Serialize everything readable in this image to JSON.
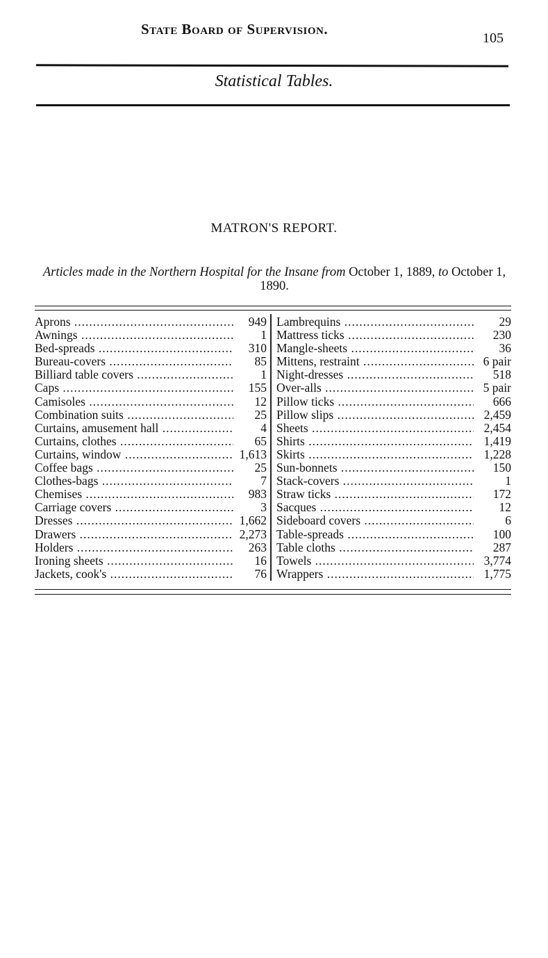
{
  "header": {
    "running_title": "State Board of Supervision.",
    "page_number": "105"
  },
  "section_title": "Statistical Tables.",
  "report": {
    "title": "MATRON'S REPORT.",
    "subtitle_parts": [
      "Articles made in the Northern Hospital for the Insane from",
      " October 1, 1889, ",
      "to",
      " October 1, 1890."
    ]
  },
  "table": {
    "left": [
      {
        "item": "Aprons",
        "qty": "949"
      },
      {
        "item": "Awnings",
        "qty": "1"
      },
      {
        "item": "Bed-spreads",
        "qty": "310"
      },
      {
        "item": "Bureau-covers",
        "qty": "85"
      },
      {
        "item": "Billiard table covers",
        "qty": "1"
      },
      {
        "item": "Caps",
        "qty": "155"
      },
      {
        "item": "Camisoles",
        "qty": "12"
      },
      {
        "item": "Combination suits",
        "qty": "25"
      },
      {
        "item": "Curtains, amusement hall",
        "qty": "4"
      },
      {
        "item": "Curtains, clothes",
        "qty": "65"
      },
      {
        "item": "Curtains, window",
        "qty": "1,613"
      },
      {
        "item": "Coffee bags",
        "qty": "25"
      },
      {
        "item": "Clothes-bags",
        "qty": "7"
      },
      {
        "item": "Chemises",
        "qty": "983"
      },
      {
        "item": "Carriage covers",
        "qty": "3"
      },
      {
        "item": "Dresses",
        "qty": "1,662"
      },
      {
        "item": "Drawers",
        "qty": "2,273"
      },
      {
        "item": "Holders",
        "qty": "263"
      },
      {
        "item": "Ironing sheets",
        "qty": "16"
      },
      {
        "item": "Jackets, cook's",
        "qty": "76"
      }
    ],
    "right": [
      {
        "item": "Lambrequins",
        "qty": "29"
      },
      {
        "item": "Mattress ticks",
        "qty": "230"
      },
      {
        "item": "Mangle-sheets",
        "qty": "36"
      },
      {
        "item": "Mittens, restraint",
        "qty": "6 pair"
      },
      {
        "item": "Night-dresses",
        "qty": "518"
      },
      {
        "item": "Over-alls",
        "qty": "5 pair"
      },
      {
        "item": "Pillow ticks",
        "qty": "666"
      },
      {
        "item": "Pillow slips",
        "qty": "2,459"
      },
      {
        "item": "Sheets",
        "qty": "2,454"
      },
      {
        "item": "Shirts",
        "qty": "1,419"
      },
      {
        "item": "Skirts",
        "qty": "1,228"
      },
      {
        "item": "Sun-bonnets",
        "qty": "150"
      },
      {
        "item": "Stack-covers",
        "qty": "1"
      },
      {
        "item": "Straw ticks",
        "qty": "172"
      },
      {
        "item": "Sacques",
        "qty": "12"
      },
      {
        "item": "Sideboard covers",
        "qty": "6"
      },
      {
        "item": "Table-spreads",
        "qty": "100"
      },
      {
        "item": "Table cloths",
        "qty": "287"
      },
      {
        "item": "Towels",
        "qty": "3,774"
      },
      {
        "item": "Wrappers",
        "qty": "1,775"
      }
    ]
  }
}
